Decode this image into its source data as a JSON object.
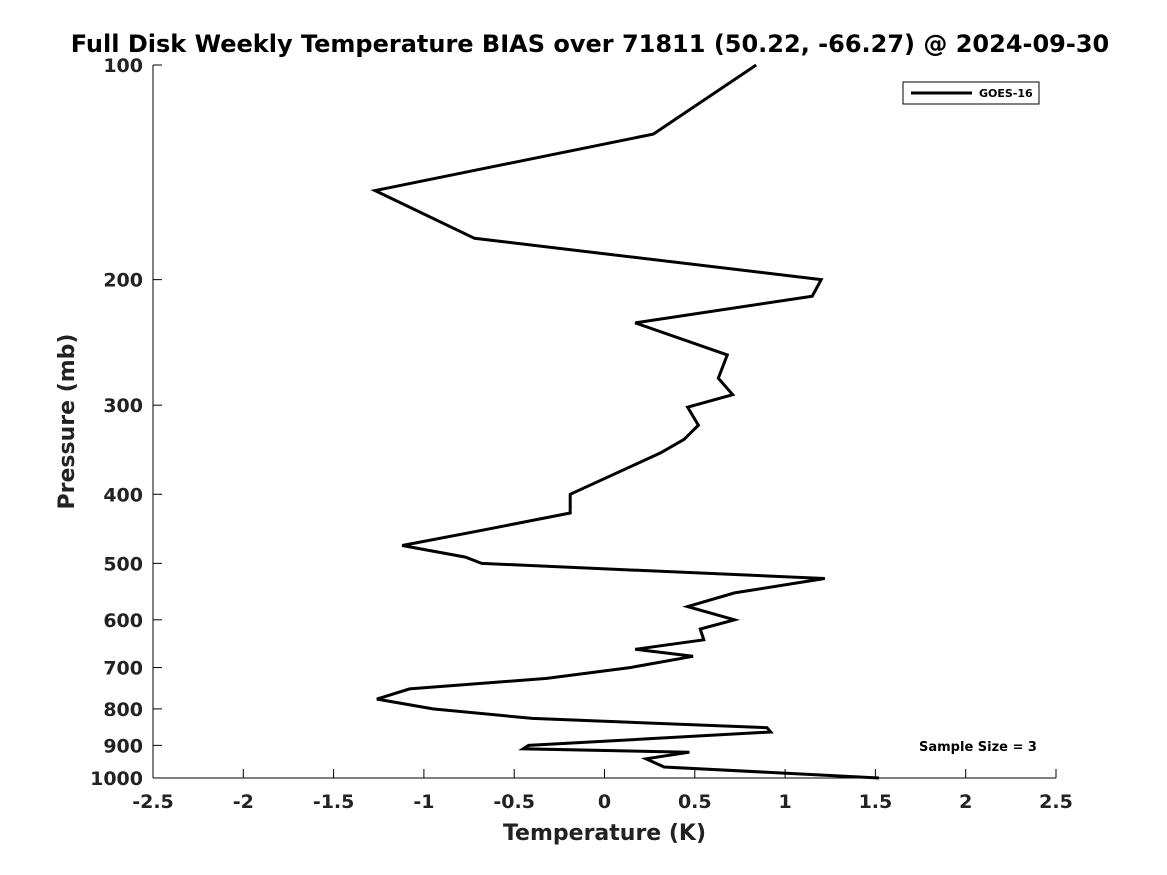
{
  "chart_data": {
    "type": "line",
    "title": "Full Disk Weekly Temperature BIAS over 71811 (50.22, -66.27) @ 2024-09-30",
    "xlabel": "Temperature (K)",
    "ylabel": "Pressure (mb)",
    "xlim": [
      -2.5,
      2.5
    ],
    "ylim": [
      1000,
      100
    ],
    "y_scale": "log",
    "y_inverted": true,
    "x_ticks": [
      -2.5,
      -2,
      -1.5,
      -1,
      -0.5,
      0,
      0.5,
      1,
      1.5,
      2,
      2.5
    ],
    "x_tick_labels": [
      "-2.5",
      "-2",
      "-1.5",
      "-1",
      "-0.5",
      "0",
      "0.5",
      "1",
      "1.5",
      "2",
      "2.5"
    ],
    "y_ticks": [
      100,
      200,
      300,
      400,
      500,
      600,
      700,
      800,
      900,
      1000
    ],
    "y_tick_labels": [
      "100",
      "200",
      "300",
      "400",
      "500",
      "600",
      "700",
      "800",
      "900",
      "1000"
    ],
    "grid": false,
    "legend_position": "top-right",
    "series": [
      {
        "name": "GOES-16",
        "color": "#000000",
        "points": [
          {
            "x": 0.84,
            "y": 100
          },
          {
            "x": 0.27,
            "y": 125
          },
          {
            "x": -1.27,
            "y": 150
          },
          {
            "x": -0.72,
            "y": 175
          },
          {
            "x": 1.2,
            "y": 200
          },
          {
            "x": 1.15,
            "y": 211
          },
          {
            "x": 0.17,
            "y": 230
          },
          {
            "x": 0.68,
            "y": 255
          },
          {
            "x": 0.63,
            "y": 275
          },
          {
            "x": 0.71,
            "y": 290
          },
          {
            "x": 0.46,
            "y": 302
          },
          {
            "x": 0.52,
            "y": 320
          },
          {
            "x": 0.44,
            "y": 335
          },
          {
            "x": 0.31,
            "y": 350
          },
          {
            "x": -0.19,
            "y": 400
          },
          {
            "x": -0.19,
            "y": 425
          },
          {
            "x": -0.69,
            "y": 450
          },
          {
            "x": -1.12,
            "y": 472
          },
          {
            "x": -0.77,
            "y": 490
          },
          {
            "x": -0.68,
            "y": 500
          },
          {
            "x": 1.22,
            "y": 525
          },
          {
            "x": 0.72,
            "y": 550
          },
          {
            "x": 0.46,
            "y": 575
          },
          {
            "x": 0.72,
            "y": 600
          },
          {
            "x": 0.53,
            "y": 618
          },
          {
            "x": 0.55,
            "y": 640
          },
          {
            "x": 0.17,
            "y": 660
          },
          {
            "x": 0.49,
            "y": 675
          },
          {
            "x": 0.14,
            "y": 700
          },
          {
            "x": -0.32,
            "y": 725
          },
          {
            "x": -1.08,
            "y": 750
          },
          {
            "x": -1.26,
            "y": 775
          },
          {
            "x": -0.95,
            "y": 800
          },
          {
            "x": -0.4,
            "y": 825
          },
          {
            "x": 0.9,
            "y": 850
          },
          {
            "x": 0.92,
            "y": 862
          },
          {
            "x": -0.42,
            "y": 900
          },
          {
            "x": -0.45,
            "y": 910
          },
          {
            "x": 0.47,
            "y": 920
          },
          {
            "x": 0.23,
            "y": 940
          },
          {
            "x": 0.33,
            "y": 965
          },
          {
            "x": 1.52,
            "y": 1000
          }
        ]
      }
    ],
    "annotations": [
      {
        "text": "Sample Size = 3",
        "position": "bottom-right"
      }
    ]
  }
}
